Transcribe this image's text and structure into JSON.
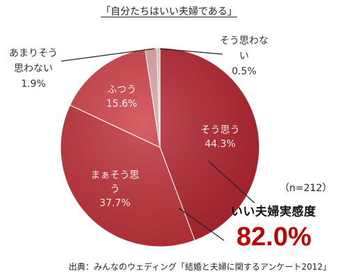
{
  "chart_data": {
    "type": "pie",
    "title": "「自分たちはいい夫婦である」",
    "slices": [
      {
        "label": "そう思う",
        "label_lines": [
          "そう思う"
        ],
        "value": 44.3,
        "value_text": "44.3%",
        "color": "#b32430"
      },
      {
        "label": "まぁそう思う",
        "label_lines": [
          "まぁそう思",
          "う"
        ],
        "value": 37.7,
        "value_text": "37.7%",
        "color": "#c0313a"
      },
      {
        "label": "ふつう",
        "label_lines": [
          "ふつう"
        ],
        "value": 15.6,
        "value_text": "15.6%",
        "color": "#cd3e45"
      },
      {
        "label": "あまりそう思わない",
        "label_lines": [
          "あまりそう",
          "思わない"
        ],
        "value": 1.9,
        "value_text": "1.9%",
        "color": "#d9a3a6"
      },
      {
        "label": "そう思わない",
        "label_lines": [
          "そう思わな",
          "い"
        ],
        "value": 0.5,
        "value_text": "0.5%",
        "color": "#e3c4c6"
      }
    ],
    "n_label": "（n=212）",
    "summary_label": "いい夫婦実感度",
    "summary_value": "82.0%"
  },
  "source": "出典：みんなのウェディング「結婚と夫婦に関するアンケート2012」"
}
